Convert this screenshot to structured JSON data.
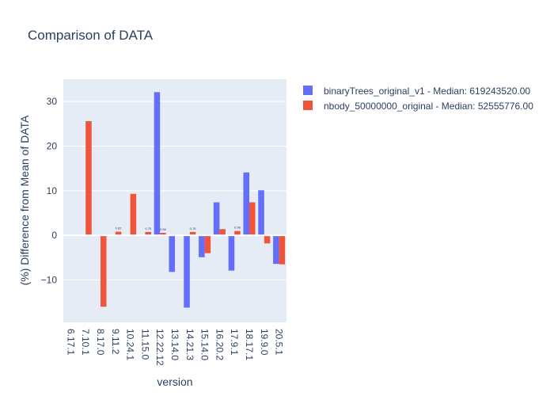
{
  "chart_data": {
    "type": "bar",
    "title": "Comparison of DATA",
    "xlabel": "version",
    "ylabel": "(%) Difference from Mean of DATA",
    "ylim": [
      -19.5,
      35
    ],
    "yticks": [
      -10,
      0,
      10,
      20,
      30
    ],
    "categories": [
      "6.17.1",
      "7.10.1",
      "8.17.0",
      "9.11.2",
      "10.24.1",
      "11.15.0",
      "12.22.12",
      "13.14.0",
      "14.21.3",
      "15.14.0",
      "16.20.2",
      "17.9.1",
      "18.17.1",
      "19.9.0",
      "20.5.1"
    ],
    "series": [
      {
        "name": "binaryTrees_original_v1 - Median: 619243520.00",
        "color": "#636efa",
        "values": [
          null,
          null,
          null,
          null,
          null,
          null,
          32.1,
          -8.2,
          -16.2,
          -4.9,
          7.4,
          -7.9,
          14.1,
          10.1,
          -6.4
        ],
        "labels": [
          "",
          "",
          "",
          "",
          "",
          "",
          "",
          "",
          "",
          "",
          "",
          "",
          "",
          "",
          ""
        ]
      },
      {
        "name": "nbody_50000000_original - Median: 52555776.00",
        "color": "#ef553b",
        "values": [
          null,
          25.6,
          -16.0,
          0.82,
          9.3,
          0.75,
          0.56,
          null,
          0.76,
          -4.0,
          1.4,
          0.98,
          7.4,
          -1.8,
          -6.5
        ],
        "labels": [
          "",
          "",
          "",
          "0.82",
          "",
          "0.75",
          "0.56",
          "",
          "0.76",
          "",
          "",
          "0.98",
          "",
          "",
          ""
        ]
      }
    ],
    "grid": true,
    "legend_position": "top-right"
  }
}
